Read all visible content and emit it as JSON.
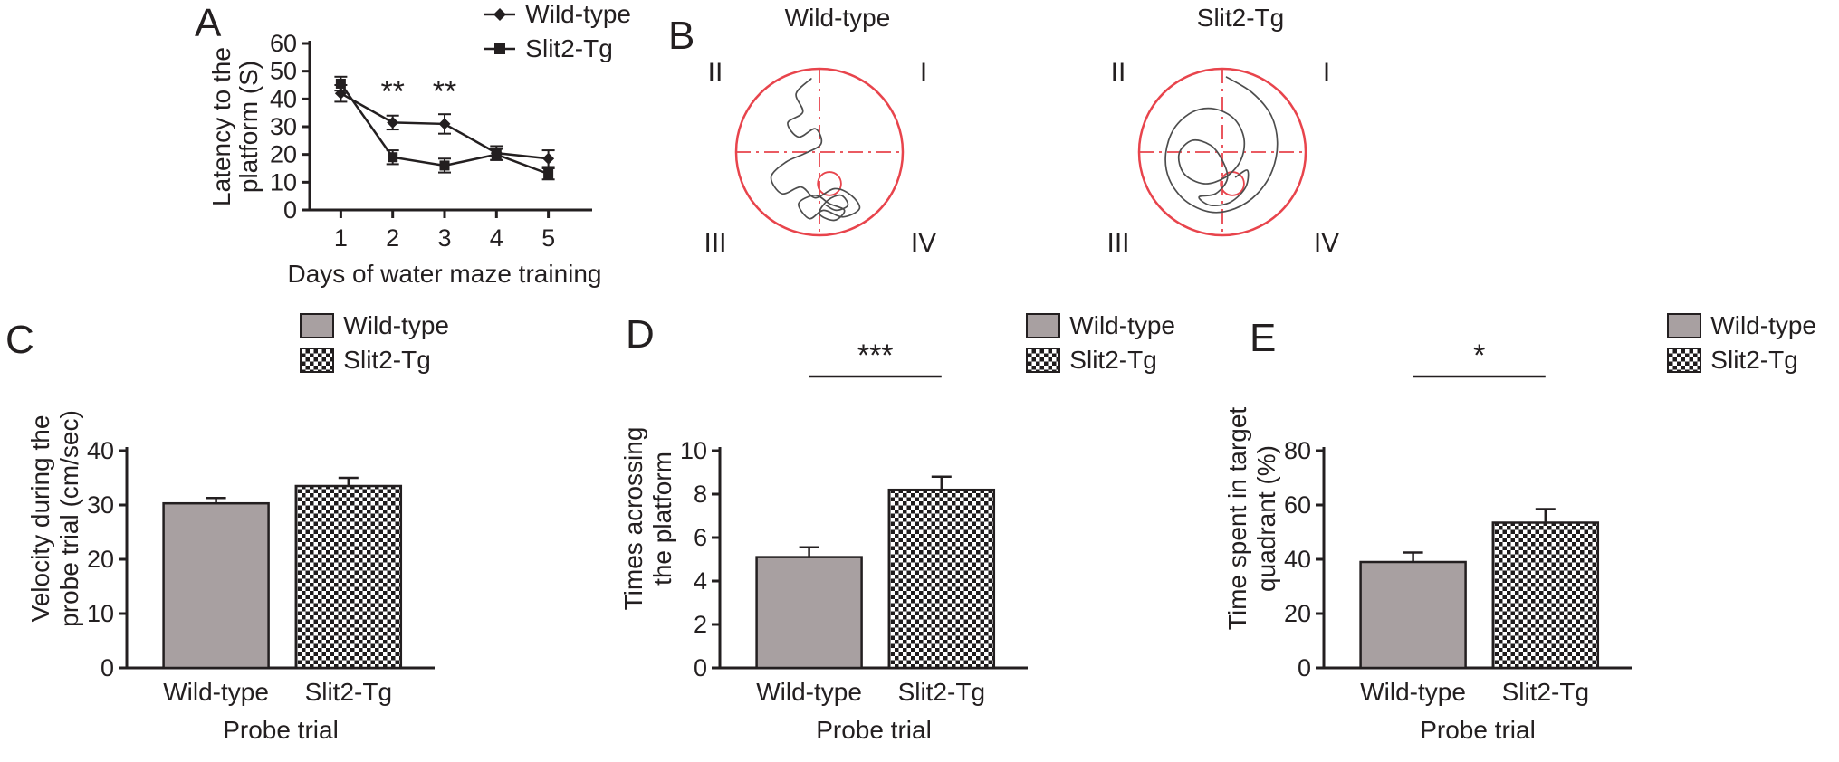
{
  "style": {
    "ink": "#231f20",
    "red": "#e8444c",
    "trace": "#4d4d4d",
    "bar_gray": "#a8a0a1",
    "checker_dark": "#1e1b1c",
    "background": "#ffffff"
  },
  "panels": {
    "a": {
      "label": "A"
    },
    "b": {
      "label": "B"
    },
    "c": {
      "label": "C"
    },
    "d": {
      "label": "D"
    },
    "e": {
      "label": "E"
    }
  },
  "chart_data": [
    {
      "panel": "A",
      "type": "line",
      "xlabel": "Days of water maze training",
      "ylabel": "Latency to the platform (S)",
      "ylabel_lines": [
        "Latency to the",
        "platform (S)"
      ],
      "x": [
        1,
        2,
        3,
        4,
        5
      ],
      "ylim": [
        0,
        60
      ],
      "yticks": [
        0,
        10,
        20,
        30,
        40,
        50,
        60
      ],
      "legend_position": "top-right",
      "grid": false,
      "series": [
        {
          "name": "Wild-type",
          "marker": "diamond",
          "values": [
            42,
            31.5,
            31,
            20.5,
            18.5
          ],
          "errors": [
            3,
            2.5,
            3.5,
            2.5,
            3
          ]
        },
        {
          "name": "Slit2-Tg",
          "marker": "square",
          "values": [
            45.5,
            19,
            16,
            20,
            13
          ],
          "errors": [
            2.5,
            2.5,
            2.5,
            2,
            2
          ]
        }
      ],
      "annotations": [
        {
          "text": "**",
          "x": 2,
          "y": 39
        },
        {
          "text": "**",
          "x": 3,
          "y": 39
        }
      ]
    },
    {
      "panel": "B",
      "type": "swim-paths",
      "plots": [
        {
          "title": "Wild-type",
          "quadrants": [
            "II",
            "I",
            "III",
            "IV"
          ],
          "platform": [
            0.12,
            0.38,
            0.14
          ],
          "path": [
            [
              -0.1,
              -0.88
            ],
            [
              -0.28,
              -0.7
            ],
            [
              -0.2,
              -0.48
            ],
            [
              -0.38,
              -0.35
            ],
            [
              -0.25,
              -0.18
            ],
            [
              -0.05,
              -0.28
            ],
            [
              0.02,
              -0.1
            ],
            [
              -0.18,
              0.02
            ],
            [
              -0.4,
              0.12
            ],
            [
              -0.58,
              0.3
            ],
            [
              -0.45,
              0.5
            ],
            [
              -0.22,
              0.42
            ],
            [
              -0.05,
              0.55
            ],
            [
              0.18,
              0.44
            ],
            [
              0.38,
              0.52
            ],
            [
              0.48,
              0.68
            ],
            [
              0.28,
              0.78
            ],
            [
              0.05,
              0.7
            ],
            [
              -0.12,
              0.8
            ],
            [
              -0.25,
              0.62
            ],
            [
              -0.05,
              0.52
            ],
            [
              0.12,
              0.62
            ],
            [
              0.3,
              0.7
            ],
            [
              0.18,
              0.82
            ],
            [
              0.0,
              0.74
            ],
            [
              0.1,
              0.58
            ],
            [
              0.26,
              0.52
            ],
            [
              0.34,
              0.64
            ],
            [
              0.2,
              0.7
            ],
            [
              0.08,
              0.64
            ]
          ]
        },
        {
          "title": "Slit2-Tg",
          "quadrants": [
            "II",
            "I",
            "III",
            "IV"
          ],
          "platform": [
            0.12,
            0.38,
            0.14
          ],
          "path": [
            [
              0.05,
              -0.9
            ],
            [
              0.35,
              -0.72
            ],
            [
              0.58,
              -0.45
            ],
            [
              0.66,
              -0.12
            ],
            [
              0.6,
              0.22
            ],
            [
              0.42,
              0.5
            ],
            [
              0.15,
              0.68
            ],
            [
              -0.15,
              0.72
            ],
            [
              -0.45,
              0.58
            ],
            [
              -0.64,
              0.32
            ],
            [
              -0.68,
              0.02
            ],
            [
              -0.58,
              -0.28
            ],
            [
              -0.36,
              -0.48
            ],
            [
              -0.1,
              -0.52
            ],
            [
              0.14,
              -0.4
            ],
            [
              0.26,
              -0.16
            ],
            [
              0.22,
              0.1
            ],
            [
              0.04,
              0.3
            ],
            [
              -0.22,
              0.38
            ],
            [
              -0.46,
              0.26
            ],
            [
              -0.52,
              0.02
            ],
            [
              -0.36,
              -0.14
            ],
            [
              -0.14,
              -0.08
            ],
            [
              0.0,
              0.1
            ],
            [
              0.06,
              0.32
            ],
            [
              -0.08,
              0.5
            ],
            [
              -0.28,
              0.54
            ],
            [
              -0.14,
              0.64
            ],
            [
              0.1,
              0.6
            ],
            [
              0.28,
              0.42
            ],
            [
              0.3,
              0.22
            ],
            [
              0.16,
              0.3
            ]
          ]
        }
      ]
    },
    {
      "panel": "C",
      "type": "bar",
      "legend": [
        "Wild-type",
        "Slit2-Tg"
      ],
      "categories": [
        "Wild-type",
        "Slit2-Tg"
      ],
      "values": [
        30.3,
        33.5
      ],
      "errors": [
        1,
        1.5
      ],
      "xlabel": "Probe trial",
      "ylabel": "Velocity during the probe trial (cm/sec)",
      "ylabel_lines": [
        "Velocity during the",
        "probe trial (cm/sec)"
      ],
      "ylim": [
        0,
        40
      ],
      "yticks": [
        0,
        10,
        20,
        30,
        40
      ],
      "legend_position": "top-right",
      "grid": false,
      "significance": null
    },
    {
      "panel": "D",
      "type": "bar",
      "legend": [
        "Wild-type",
        "Slit2-Tg"
      ],
      "categories": [
        "Wild-type",
        "Slit2-Tg"
      ],
      "values": [
        5.1,
        8.2
      ],
      "errors": [
        0.45,
        0.6
      ],
      "xlabel": "Probe trial",
      "ylabel": "Times acrossing the platform",
      "ylabel_lines": [
        "Times acrossing",
        "the platform"
      ],
      "ylim": [
        0,
        10
      ],
      "yticks": [
        0,
        2,
        4,
        6,
        8,
        10
      ],
      "legend_position": "top-right",
      "grid": false,
      "significance": {
        "text": "***"
      }
    },
    {
      "panel": "E",
      "type": "bar",
      "legend": [
        "Wild-type",
        "Slit2-Tg"
      ],
      "categories": [
        "Wild-type",
        "Slit2-Tg"
      ],
      "values": [
        39,
        53.5
      ],
      "errors": [
        3.5,
        5
      ],
      "xlabel": "Probe trial",
      "ylabel": "Time spent in target quadrant (%)",
      "ylabel_lines": [
        "Time spent in target",
        "quadrant (%)"
      ],
      "ylim": [
        0,
        80
      ],
      "yticks": [
        0,
        20,
        40,
        60,
        80
      ],
      "legend_position": "top-right",
      "grid": false,
      "significance": {
        "text": "*"
      }
    }
  ]
}
